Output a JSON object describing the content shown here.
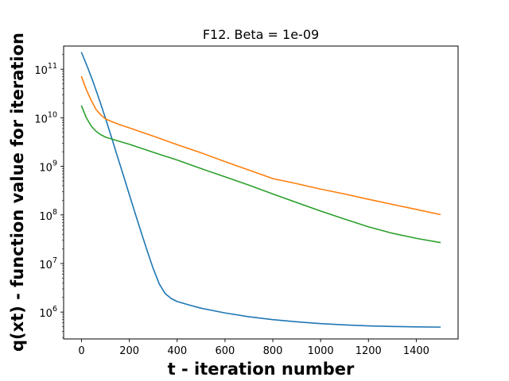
{
  "chart_data": {
    "type": "line",
    "title": "F12. Beta = 1e-09",
    "xlabel": "t - iteration number",
    "ylabel": "q(xt) - function value for iteration",
    "xlim": [
      -75,
      1575
    ],
    "ylim": [
      280000,
      300000000000
    ],
    "yscale": "log",
    "grid": false,
    "xticks": [
      {
        "value": 0,
        "label": "0"
      },
      {
        "value": 200,
        "label": "200"
      },
      {
        "value": 400,
        "label": "400"
      },
      {
        "value": 600,
        "label": "600"
      },
      {
        "value": 800,
        "label": "800"
      },
      {
        "value": 1000,
        "label": "1000"
      },
      {
        "value": 1200,
        "label": "1200"
      },
      {
        "value": 1400,
        "label": "1400"
      }
    ],
    "yticks": [
      {
        "value": 1000000,
        "base": "10",
        "exp": "6"
      },
      {
        "value": 10000000,
        "base": "10",
        "exp": "7"
      },
      {
        "value": 100000000,
        "base": "10",
        "exp": "8"
      },
      {
        "value": 1000000000,
        "base": "10",
        "exp": "9"
      },
      {
        "value": 10000000000,
        "base": "10",
        "exp": "10"
      },
      {
        "value": 100000000000,
        "base": "10",
        "exp": "11"
      }
    ],
    "series": [
      {
        "color": "#1f77b4",
        "x": [
          0,
          25,
          50,
          75,
          100,
          125,
          150,
          175,
          200,
          225,
          250,
          275,
          300,
          325,
          350,
          375,
          400,
          450,
          500,
          600,
          700,
          800,
          900,
          1000,
          1100,
          1200,
          1300,
          1400,
          1500
        ],
        "y": [
          220000000000,
          110000000000,
          52000000000,
          23000000000,
          9800000000,
          4000000000,
          1600000000,
          650000000,
          260000000,
          105000000,
          43000000,
          18000000,
          7800000,
          3800000,
          2400000,
          1900000,
          1650000,
          1400000,
          1200000,
          960000,
          800000,
          700000,
          630000,
          580000,
          545000,
          520000,
          505000,
          495000,
          490000
        ]
      },
      {
        "color": "#ff7f0e",
        "x": [
          0,
          20,
          40,
          60,
          80,
          100,
          130,
          160,
          200,
          300,
          400,
          500,
          600,
          700,
          800,
          900,
          1000,
          1100,
          1200,
          1300,
          1400,
          1500
        ],
        "y": [
          70000000000,
          38000000000,
          23000000000,
          15000000000,
          11500000000,
          9500000000,
          8200000000,
          7200000000,
          6200000000,
          4200000000,
          2800000000,
          1900000000,
          1250000000,
          840000000,
          560000000,
          440000000,
          340000000,
          270000000,
          210000000,
          165000000,
          130000000,
          102000000
        ]
      },
      {
        "color": "#2ca02c",
        "x": [
          0,
          20,
          40,
          60,
          80,
          100,
          130,
          160,
          200,
          300,
          400,
          500,
          600,
          700,
          800,
          900,
          1000,
          1100,
          1200,
          1300,
          1400,
          1500
        ],
        "y": [
          17500000000,
          10000000000,
          6800000000,
          5300000000,
          4500000000,
          4000000000,
          3600000000,
          3250000000,
          2850000000,
          1950000000,
          1350000000,
          900000000,
          610000000,
          410000000,
          270000000,
          180000000,
          120000000,
          82000000,
          57000000,
          42000000,
          33000000,
          27000000
        ]
      }
    ]
  }
}
